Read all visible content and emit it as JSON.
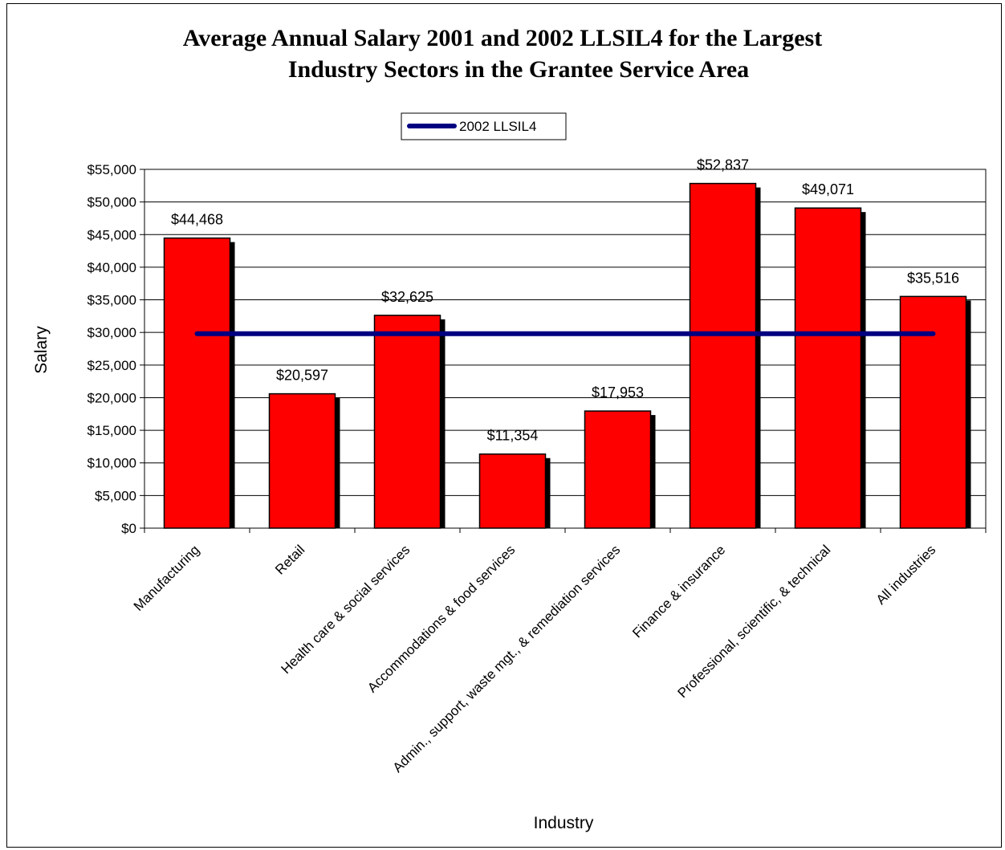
{
  "chart_data": {
    "type": "bar",
    "title_lines": [
      "Average Annual Salary 2001 and 2002 LLSIL4 for the Largest",
      "Industry Sectors in the Grantee Service Area"
    ],
    "xlabel": "Industry",
    "ylabel": "Salary",
    "ylim": [
      0,
      55000
    ],
    "y_ticks": [
      "$0",
      "$5,000",
      "$10,000",
      "$15,000",
      "$20,000",
      "$25,000",
      "$30,000",
      "$35,000",
      "$40,000",
      "$45,000",
      "$50,000",
      "$55,000"
    ],
    "grid": true,
    "categories": [
      "Manufacturing",
      "Retail",
      "Health care & social services",
      "Accommodations &  food services",
      "Admin., support, waste mgt., & remediation services",
      "Finance & insurance",
      "Professional, scientific, & technical",
      "All industries"
    ],
    "values": [
      44468,
      20597,
      32625,
      11354,
      17953,
      52837,
      49071,
      35516
    ],
    "value_labels": [
      "$44,468",
      "$20,597",
      "$32,625",
      "$11,354",
      "$17,953",
      "$52,837",
      "$49,071",
      "$35,516"
    ],
    "bar_color": "#ff0000",
    "line_series": {
      "name": "2002 LLSIL4",
      "value": 29800,
      "color": "#000080"
    },
    "legend_position": "top-center"
  }
}
